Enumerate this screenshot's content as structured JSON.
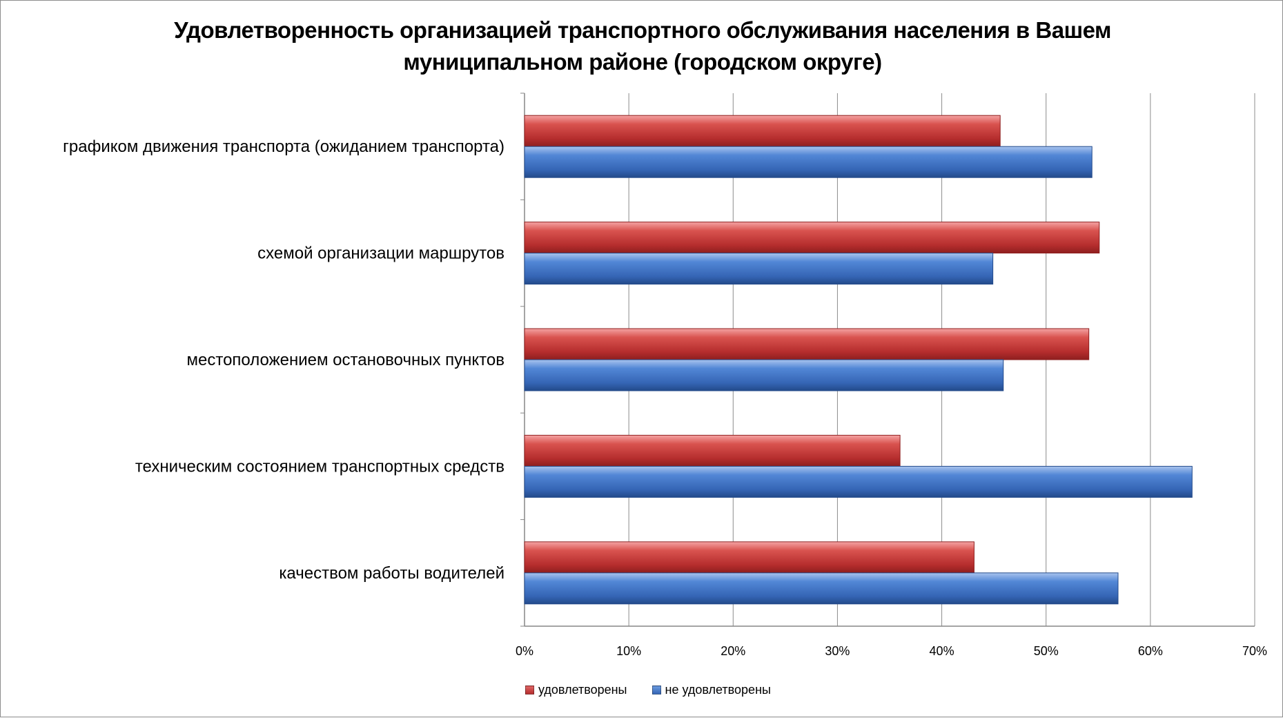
{
  "chart_data": {
    "type": "bar",
    "orientation": "horizontal",
    "title": "Удовлетворенность организацией транспортного обслуживания населения в Вашем муниципальном районе (городском округе)",
    "title_lines": [
      "Удовлетворенность организацией транспортного обслуживания населения в Вашем",
      "муниципальном районе (городском округе)"
    ],
    "categories": [
      "графиком движения транспорта (ожиданием транспорта)",
      "схемой организации маршрутов",
      "местоположением остановочных пунктов",
      "техническим состоянием транспортных средств",
      "качеством работы водителей"
    ],
    "series": [
      {
        "name": "удовлетворены",
        "color": "#c0393b",
        "values": [
          45.6,
          55.1,
          54.1,
          36.0,
          43.1
        ]
      },
      {
        "name": "не удовлетворены",
        "color": "#3f6fbf",
        "values": [
          54.4,
          44.9,
          45.9,
          64.0,
          56.9
        ]
      }
    ],
    "xlim": [
      0,
      70
    ],
    "x_ticks": [
      "0%",
      "10%",
      "20%",
      "30%",
      "40%",
      "50%",
      "60%",
      "70%"
    ],
    "xlabel": "",
    "ylabel": "",
    "grid": true,
    "legend_position": "bottom"
  }
}
